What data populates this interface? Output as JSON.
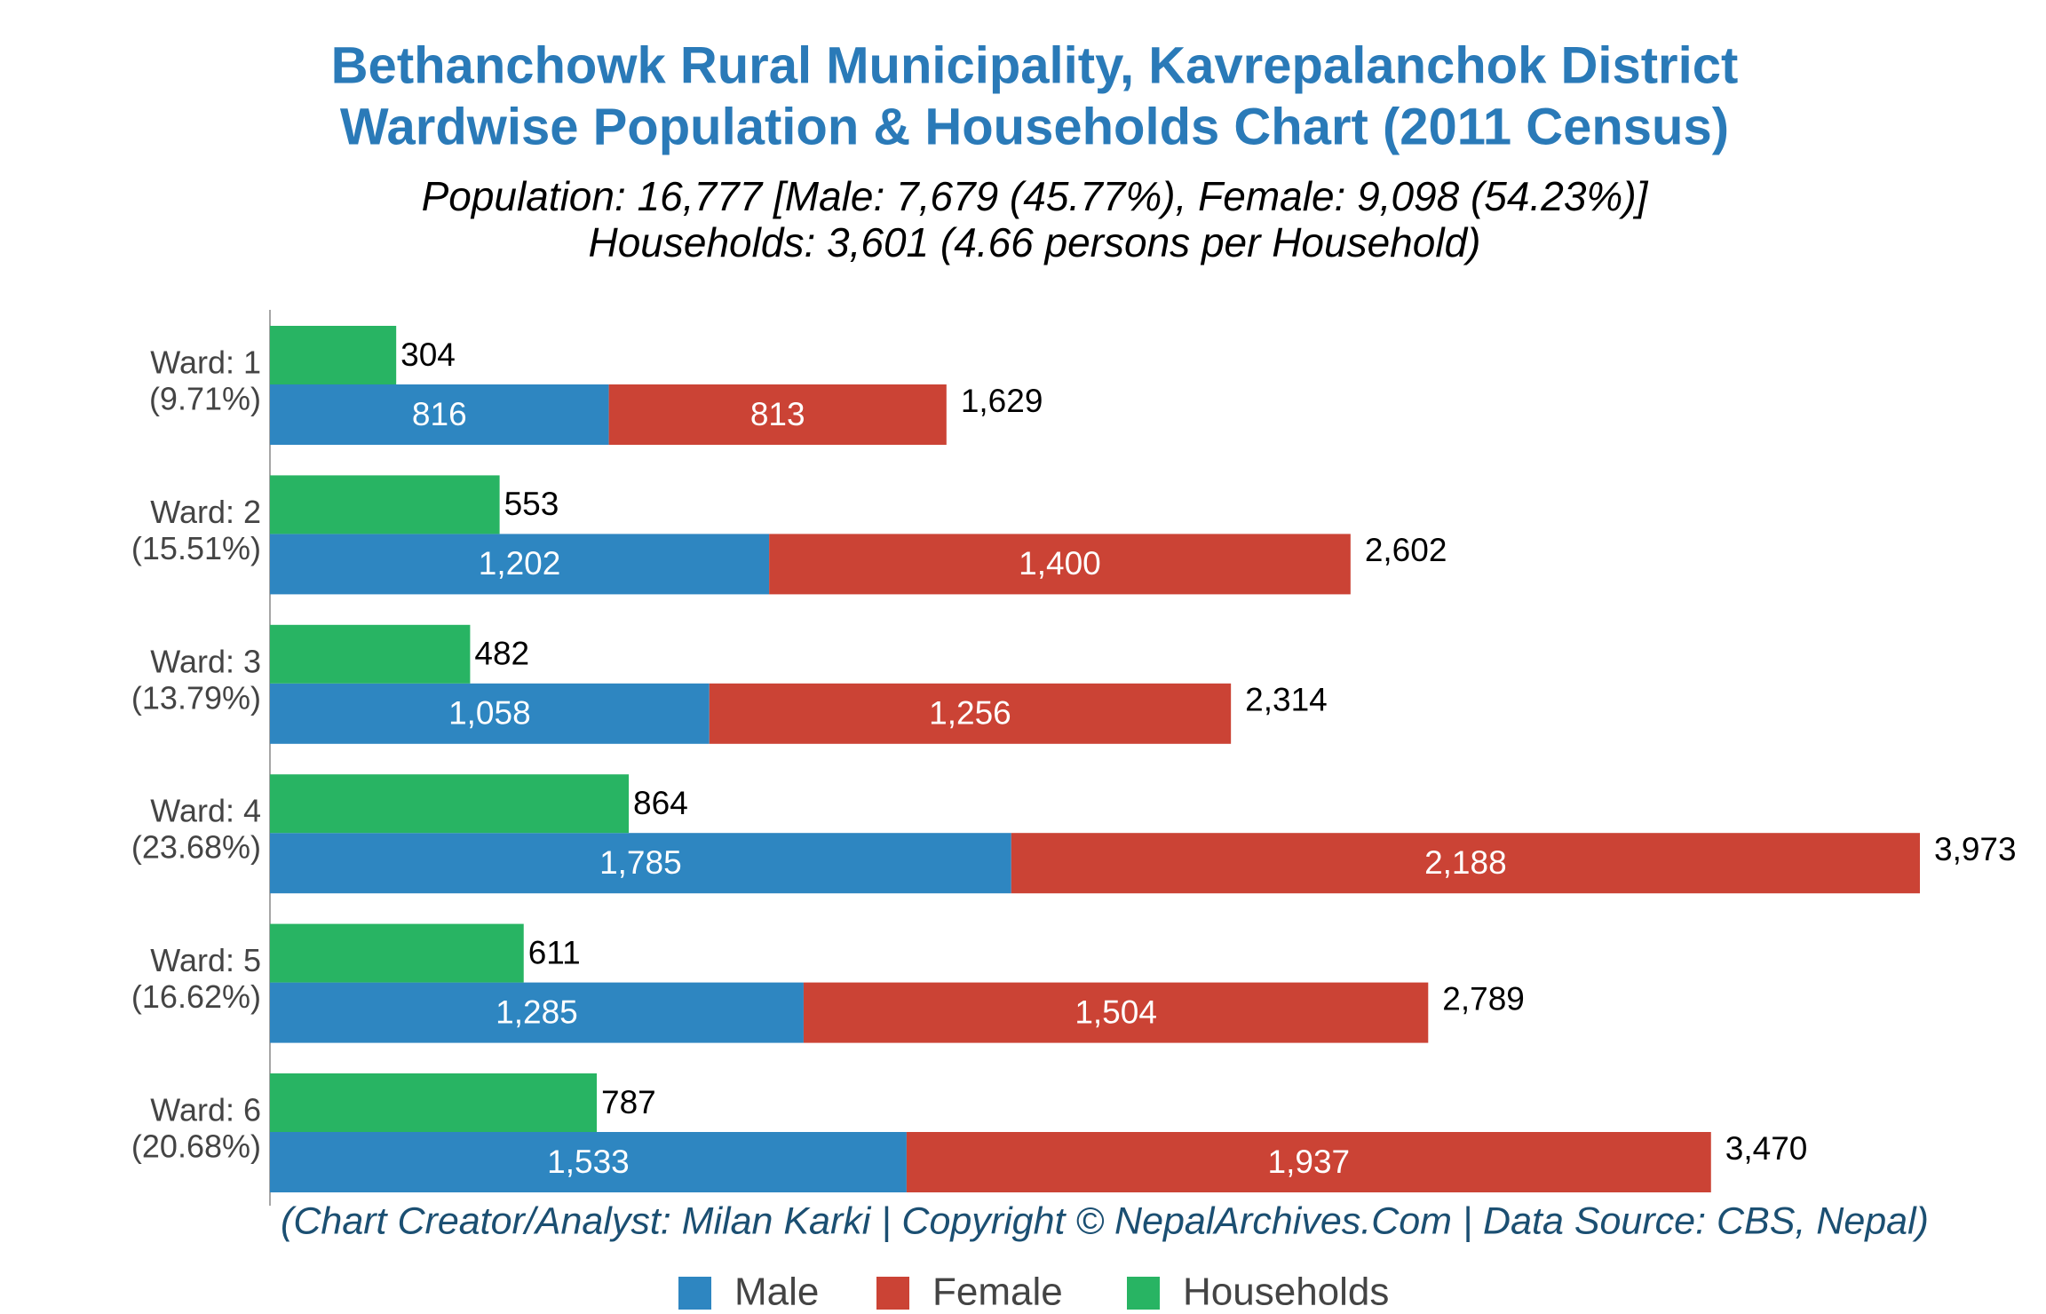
{
  "chart_data": {
    "type": "bar",
    "orientation": "horizontal",
    "title": [
      "Bethanchowk Rural Municipality, Kavrepalanchok District",
      "Wardwise Population & Households Chart (2011 Census)"
    ],
    "subtitle": [
      "Population: 16,777 [Male: 7,679 (45.77%), Female: 9,098 (54.23%)]",
      "Households: 3,601 (4.66 persons per Household)"
    ],
    "credit": "(Chart Creator/Analyst: Milan Karki | Copyright © NepalArchives.Com | Data Source: CBS, Nepal)",
    "categories": [
      "Ward: 1",
      "Ward: 2",
      "Ward: 3",
      "Ward: 4",
      "Ward: 5",
      "Ward: 6"
    ],
    "category_shares": [
      "(9.71%)",
      "(15.51%)",
      "(13.79%)",
      "(23.68%)",
      "(16.62%)",
      "(20.68%)"
    ],
    "series": [
      {
        "name": "Male",
        "color": "#2e86c1",
        "stack": "population",
        "values": [
          816,
          1202,
          1058,
          1785,
          1285,
          1533
        ],
        "value_labels": [
          "816",
          "1,202",
          "1,058",
          "1,785",
          "1,285",
          "1,533"
        ]
      },
      {
        "name": "Female",
        "color": "#cb4335",
        "stack": "population",
        "values": [
          813,
          1400,
          1256,
          2188,
          1504,
          1937
        ],
        "value_labels": [
          "813",
          "1,400",
          "1,256",
          "2,188",
          "1,504",
          "1,937"
        ]
      },
      {
        "name": "Households",
        "color": "#28b463",
        "stack": "households",
        "values": [
          304,
          553,
          482,
          864,
          611,
          787
        ]
      }
    ],
    "totals": [
      1629,
      2602,
      2314,
      3973,
      2789,
      3470
    ],
    "total_labels": [
      "1,629",
      "2,602",
      "2,314",
      "3,973",
      "2,789",
      "3,470"
    ],
    "legend": "bottom"
  }
}
